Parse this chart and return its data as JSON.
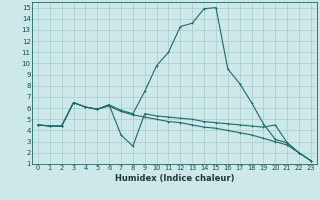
{
  "xlabel": "Humidex (Indice chaleur)",
  "bg_color": "#cce8e8",
  "grid_color": "#aacccc",
  "line_color": "#1a6b6b",
  "xlim": [
    -0.5,
    23.5
  ],
  "ylim": [
    1,
    15.5
  ],
  "xticks": [
    0,
    1,
    2,
    3,
    4,
    5,
    6,
    7,
    8,
    9,
    10,
    11,
    12,
    13,
    14,
    15,
    16,
    17,
    18,
    19,
    20,
    21,
    22,
    23
  ],
  "yticks": [
    1,
    2,
    3,
    4,
    5,
    6,
    7,
    8,
    9,
    10,
    11,
    12,
    13,
    14,
    15
  ],
  "series1": [
    [
      0,
      4.5
    ],
    [
      1,
      4.4
    ],
    [
      2,
      4.4
    ],
    [
      3,
      6.5
    ],
    [
      4,
      6.1
    ],
    [
      5,
      5.9
    ],
    [
      6,
      6.3
    ],
    [
      7,
      5.8
    ],
    [
      8,
      5.5
    ],
    [
      9,
      7.5
    ],
    [
      10,
      9.8
    ],
    [
      11,
      11.0
    ],
    [
      12,
      13.3
    ],
    [
      13,
      13.6
    ],
    [
      14,
      14.9
    ],
    [
      15,
      15.0
    ],
    [
      16,
      9.5
    ],
    [
      17,
      8.2
    ],
    [
      18,
      6.5
    ],
    [
      19,
      4.6
    ],
    [
      20,
      3.2
    ],
    [
      21,
      2.9
    ],
    [
      22,
      2.0
    ],
    [
      23,
      1.3
    ]
  ],
  "series2": [
    [
      0,
      4.5
    ],
    [
      1,
      4.4
    ],
    [
      2,
      4.4
    ],
    [
      3,
      6.5
    ],
    [
      4,
      6.1
    ],
    [
      5,
      5.9
    ],
    [
      6,
      6.3
    ],
    [
      7,
      3.6
    ],
    [
      8,
      2.6
    ],
    [
      9,
      5.5
    ],
    [
      10,
      5.3
    ],
    [
      11,
      5.2
    ],
    [
      12,
      5.1
    ],
    [
      13,
      5.0
    ],
    [
      14,
      4.8
    ],
    [
      15,
      4.7
    ],
    [
      16,
      4.6
    ],
    [
      17,
      4.5
    ],
    [
      18,
      4.4
    ],
    [
      19,
      4.3
    ],
    [
      20,
      4.5
    ],
    [
      21,
      2.9
    ],
    [
      22,
      2.0
    ],
    [
      23,
      1.3
    ]
  ],
  "series3": [
    [
      0,
      4.5
    ],
    [
      1,
      4.4
    ],
    [
      2,
      4.4
    ],
    [
      3,
      6.5
    ],
    [
      4,
      6.1
    ],
    [
      5,
      5.9
    ],
    [
      6,
      6.2
    ],
    [
      7,
      5.7
    ],
    [
      8,
      5.4
    ],
    [
      9,
      5.2
    ],
    [
      10,
      5.0
    ],
    [
      11,
      4.8
    ],
    [
      12,
      4.7
    ],
    [
      13,
      4.5
    ],
    [
      14,
      4.3
    ],
    [
      15,
      4.2
    ],
    [
      16,
      4.0
    ],
    [
      17,
      3.8
    ],
    [
      18,
      3.6
    ],
    [
      19,
      3.3
    ],
    [
      20,
      3.0
    ],
    [
      21,
      2.7
    ],
    [
      22,
      2.0
    ],
    [
      23,
      1.3
    ]
  ]
}
